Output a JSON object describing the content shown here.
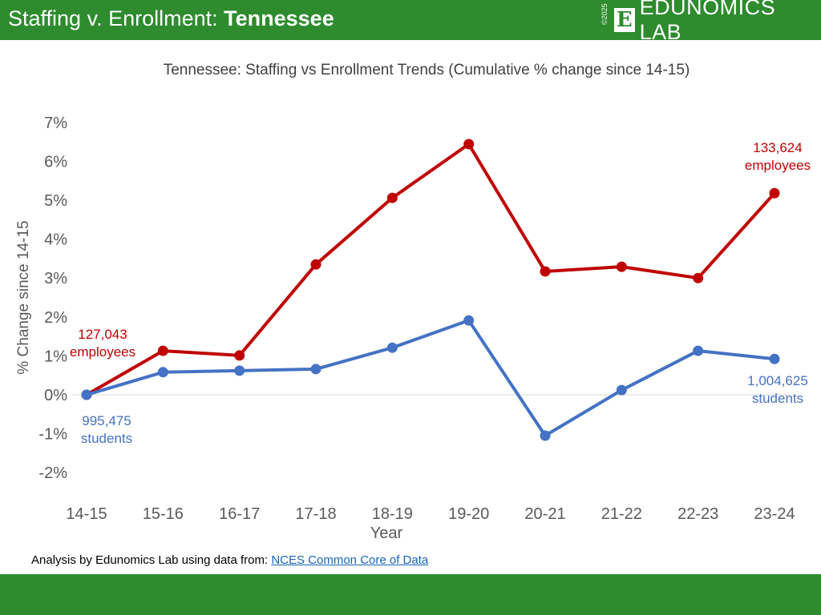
{
  "header": {
    "title_prefix": "Staffing v. Enrollment: ",
    "title_state": "Tennessee",
    "logo_copyright": "©2025",
    "logo_letter": "E",
    "logo_text": "EDUNOMICS LAB"
  },
  "footer": {
    "source_prefix": "Analysis by Edunomics Lab using data from: ",
    "source_link": "NCES Common Core of Data"
  },
  "colors": {
    "brand_green": "#2e8b2e",
    "staff": "#c00000",
    "students": "#4472c4"
  },
  "chart_data": {
    "type": "line",
    "title": "Tennessee: Staffing vs Enrollment Trends (Cumulative % change since 14-15)",
    "xlabel": "Year",
    "ylabel": "% Change since 14-15",
    "categories": [
      "14-15",
      "15-16",
      "16-17",
      "17-18",
      "18-19",
      "19-20",
      "20-21",
      "21-22",
      "22-23",
      "23-24"
    ],
    "ylim": [
      -2,
      7
    ],
    "yticks": [
      "-2%",
      "-1%",
      "0%",
      "1%",
      "2%",
      "3%",
      "4%",
      "5%",
      "6%",
      "7%"
    ],
    "series": [
      {
        "key": "staff",
        "values": [
          0,
          1.13,
          1.01,
          3.35,
          5.06,
          6.44,
          3.17,
          3.29,
          3.0,
          5.18
        ]
      },
      {
        "key": "students",
        "values": [
          0,
          0.58,
          0.62,
          0.66,
          1.21,
          1.91,
          -1.05,
          0.12,
          1.13,
          0.92
        ]
      }
    ],
    "annotations": {
      "staff_start": [
        "127,043",
        "employees"
      ],
      "staff_end": [
        "133,624",
        "employees"
      ],
      "students_start": [
        "995,475",
        "students"
      ],
      "students_end": [
        "1,004,625",
        "students"
      ]
    }
  }
}
